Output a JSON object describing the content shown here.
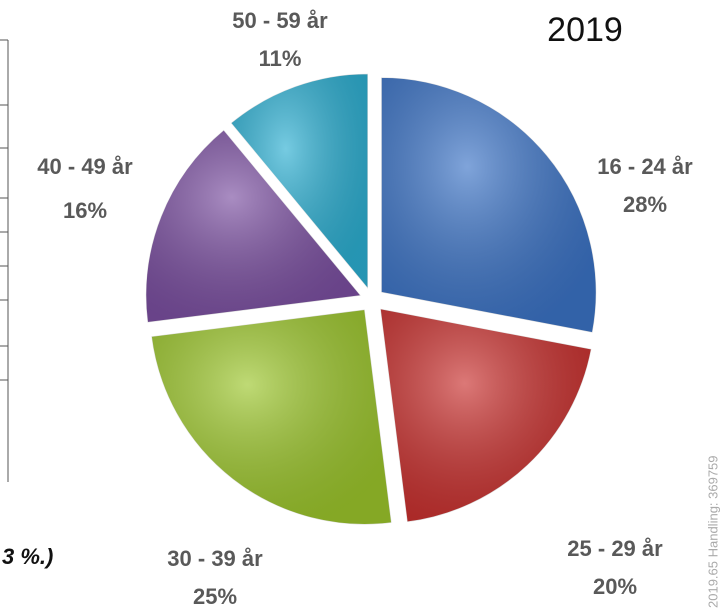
{
  "chart_data": {
    "type": "pie",
    "title": "2019",
    "categories": [
      "16 - 24 år",
      "25 - 29 år",
      "30 - 39 år",
      "40 - 49 år",
      "50 - 59 år"
    ],
    "values": [
      28,
      20,
      25,
      16,
      11
    ],
    "value_labels": [
      "28%",
      "20%",
      "25%",
      "16%",
      "11%"
    ],
    "colors": [
      "#3b73c6",
      "#c9302e",
      "#9cc62b",
      "#7b4fa1",
      "#2cafd2"
    ],
    "annotations": [
      "3 %.)",
      "2019.65 Handling: 369759"
    ]
  }
}
